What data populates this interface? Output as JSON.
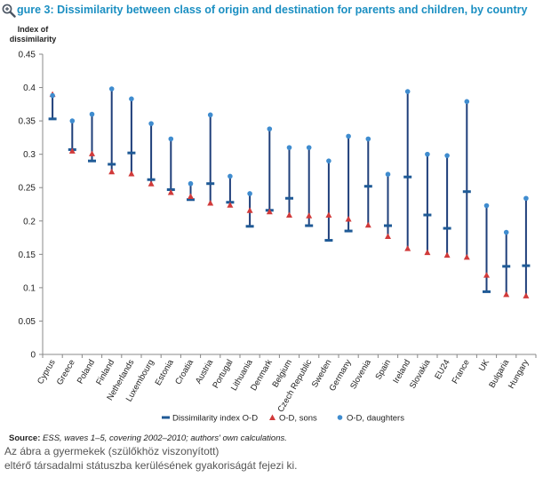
{
  "header": {
    "title": "gure 3: Dissimilarity between class of origin and destination for parents and children, by country",
    "zoom_icon": "magnifier-icon",
    "title_color": "#1b8fc2"
  },
  "source": {
    "label": "Source:",
    "text": "ESS, waves 1–5, covering 2002–2010; authors' own calculations."
  },
  "caption": {
    "line1": "Az ábra a gyermekek (szülőkhöz viszonyított)",
    "line2": "eltérő társadalmi státuszba kerülésének gyakoriságát fejezi ki."
  },
  "chart_data": {
    "type": "scatter",
    "ylabel": "Index of\ndissimilarity",
    "ylim": [
      0,
      0.45
    ],
    "yticks": [
      "0",
      "0.05",
      "0.1",
      "0.15",
      "0.2",
      "0.25",
      "0.3",
      "0.35",
      "0.4",
      "0.45"
    ],
    "categories": [
      "Cyprus",
      "Greece",
      "Poland",
      "Finland",
      "Netherlands",
      "Luxembourg",
      "Estonia",
      "Croatia",
      "Austria",
      "Portugal",
      "Lithuania",
      "Denmark",
      "Belgium",
      "Czech Republic",
      "Sweden",
      "Germany",
      "Slovenia",
      "Spain",
      "Ireland",
      "Slovakia",
      "EU24",
      "France",
      "UK",
      "Bulgaria",
      "Hungary"
    ],
    "series": [
      {
        "name": "Dissimilarity index O-D",
        "marker": "dash",
        "color": "#1f5a96",
        "values": [
          0.353,
          0.307,
          0.29,
          0.285,
          0.302,
          0.262,
          0.247,
          0.232,
          0.256,
          0.228,
          0.192,
          0.216,
          0.234,
          0.193,
          0.171,
          0.185,
          0.252,
          0.193,
          0.266,
          0.209,
          0.189,
          0.244,
          0.094,
          0.132,
          0.133
        ]
      },
      {
        "name": "O-D, sons",
        "marker": "triangle",
        "color": "#d13a3a",
        "values": [
          0.39,
          0.305,
          0.301,
          0.274,
          0.271,
          0.256,
          0.243,
          0.237,
          0.227,
          0.224,
          0.216,
          0.214,
          0.209,
          0.208,
          0.209,
          0.203,
          0.194,
          0.177,
          0.159,
          0.153,
          0.149,
          0.146,
          0.119,
          0.09,
          0.088
        ]
      },
      {
        "name": "O-D, daughters",
        "marker": "circle",
        "color": "#3f8ccf",
        "values": [
          0.388,
          0.35,
          0.36,
          0.398,
          0.383,
          0.346,
          0.323,
          0.256,
          0.359,
          0.267,
          0.241,
          0.338,
          0.31,
          0.31,
          0.29,
          0.327,
          0.323,
          0.27,
          0.394,
          0.3,
          0.298,
          0.379,
          0.223,
          0.183,
          0.234
        ]
      }
    ],
    "range_line_color": "#1f3f7a",
    "grid": false,
    "legend_position": "bottom"
  }
}
